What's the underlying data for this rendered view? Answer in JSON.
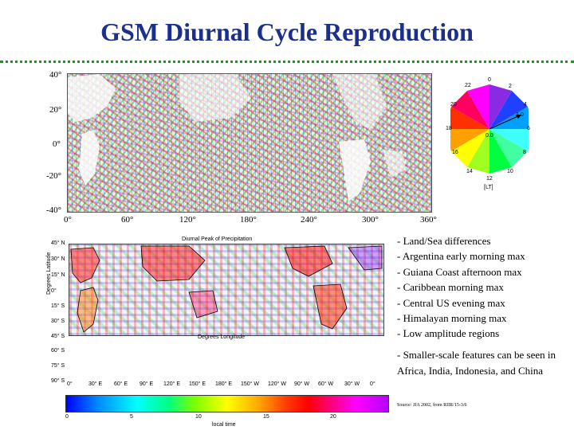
{
  "title": "GSM Diurnal Cycle Reproduction",
  "upper_map": {
    "y_ticks": [
      "40°",
      "20°",
      "0°",
      "-20°",
      "-40°"
    ],
    "x_ticks": [
      "0°",
      "60°",
      "120°",
      "180°",
      "240°",
      "300°",
      "360°"
    ]
  },
  "wheel": {
    "hour_labels": [
      "0",
      "2",
      "4",
      "6",
      "8",
      "10",
      "12",
      "14",
      "16",
      "18",
      "20",
      "22"
    ],
    "center_label": "0.0",
    "vector_label": "1.0",
    "unit_label": "[LT]"
  },
  "lower_map": {
    "title": "Diurnal Peak of Precipitation",
    "lat_ticks": [
      "45° N",
      "30° N",
      "15° N",
      "0°",
      "15° S",
      "30° S",
      "45° S",
      "60° S",
      "75° S",
      "90° S"
    ],
    "lon_ticks": [
      "0°",
      "30° E",
      "60° E",
      "90° E",
      "120° E",
      "150° E",
      "180° E",
      "150° W",
      "120° W",
      "90° W",
      "60° W",
      "30° W",
      "0°"
    ],
    "x_axis_label": "Degrees Longitude",
    "y_axis_label": "Degrees Latitude"
  },
  "colorbar": {
    "ticks": [
      "0",
      "5",
      "10",
      "15",
      "20"
    ],
    "label": "local time"
  },
  "bullets": [
    "- Land/Sea differences",
    "- Argentina early morning max",
    "- Guiana Coast afternoon max",
    "- Caribbean morning max",
    "- Central US evening max",
    "- Himalayan morning max",
    "- Low amplitude regions"
  ],
  "paragraph": "- Smaller-scale features can be seen in Africa, India, Indonesia, and China",
  "source": "Source: JJA 2002, from RIIR/15-3/6"
}
